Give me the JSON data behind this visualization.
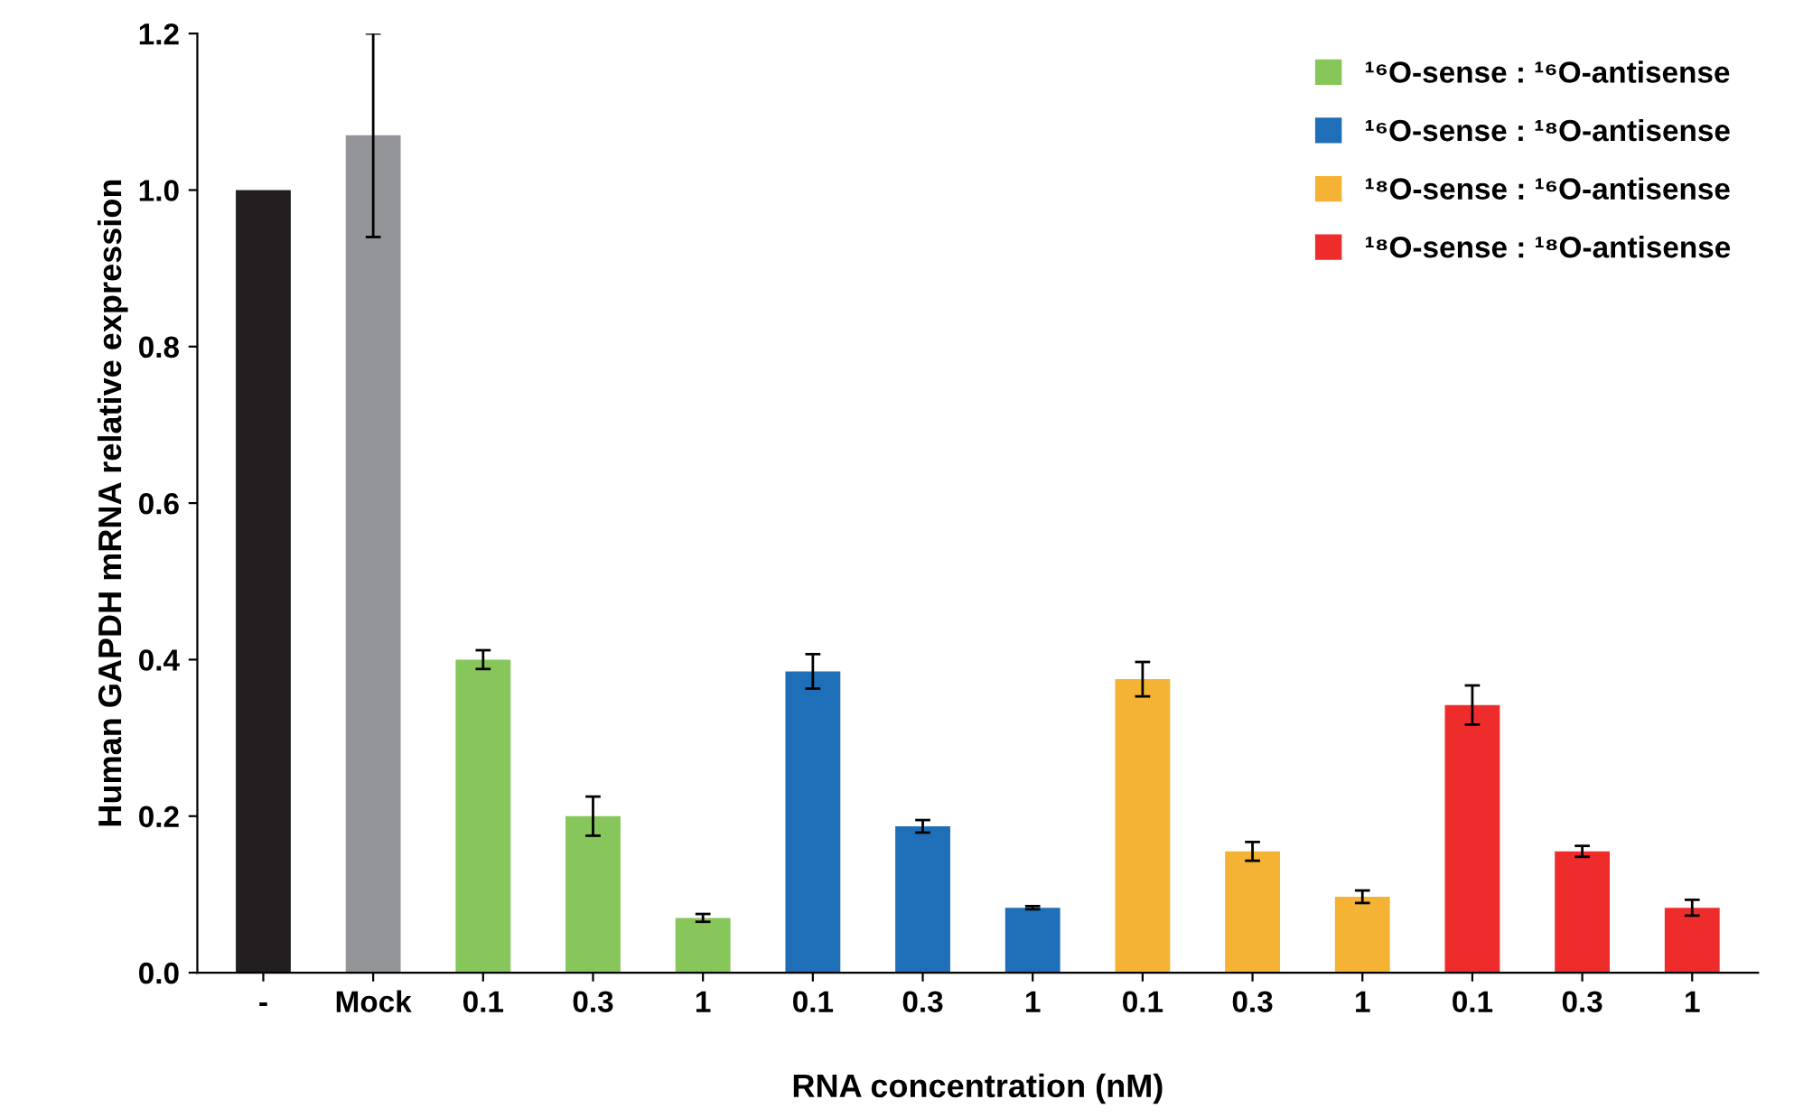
{
  "chart_data": {
    "type": "bar",
    "xlabel": "RNA concentration (nM)",
    "ylabel": "Human GAPDH mRNA relative expression",
    "categories": [
      "-",
      "Mock",
      "0.1",
      "0.3",
      "1",
      "0.1",
      "0.3",
      "1",
      "0.1",
      "0.3",
      "1",
      "0.1",
      "0.3",
      "1"
    ],
    "series": [
      {
        "colors": [
          "#231f20",
          "#939598",
          null,
          null,
          null,
          null,
          null,
          null,
          null,
          null,
          null,
          null,
          null,
          null
        ],
        "values": [
          1.0,
          1.07,
          null,
          null,
          null,
          null,
          null,
          null,
          null,
          null,
          null,
          null,
          null,
          null
        ],
        "errors": [
          null,
          0.13,
          null,
          null,
          null,
          null,
          null,
          null,
          null,
          null,
          null,
          null,
          null,
          null
        ]
      },
      {
        "name": "¹⁶O-sense : ¹⁶O-antisense",
        "color": "#86c65a",
        "values": [
          null,
          null,
          0.4,
          0.2,
          0.07,
          null,
          null,
          null,
          null,
          null,
          null,
          null,
          null,
          null
        ],
        "errors": [
          null,
          null,
          0.012,
          0.025,
          0.005,
          null,
          null,
          null,
          null,
          null,
          null,
          null,
          null,
          null
        ]
      },
      {
        "name": "¹⁶O-sense : ¹⁸O-antisense",
        "color": "#1f6fb8",
        "values": [
          null,
          null,
          null,
          null,
          null,
          0.385,
          0.187,
          0.083,
          null,
          null,
          null,
          null,
          null,
          null
        ],
        "errors": [
          null,
          null,
          null,
          null,
          null,
          0.022,
          0.008,
          0.002,
          null,
          null,
          null,
          null,
          null,
          null
        ]
      },
      {
        "name": "¹⁸O-sense : ¹⁶O-antisense",
        "color": "#f5b335",
        "values": [
          null,
          null,
          null,
          null,
          null,
          null,
          null,
          null,
          0.375,
          0.155,
          0.097,
          null,
          null,
          null
        ],
        "errors": [
          null,
          null,
          null,
          null,
          null,
          null,
          null,
          null,
          0.022,
          0.012,
          0.008,
          null,
          null,
          null
        ]
      },
      {
        "name": "¹⁸O-sense : ¹⁸O-antisense",
        "color": "#ee2c2c",
        "values": [
          null,
          null,
          null,
          null,
          null,
          null,
          null,
          null,
          null,
          null,
          null,
          0.342,
          0.155,
          0.083
        ],
        "errors": [
          null,
          null,
          null,
          null,
          null,
          null,
          null,
          null,
          null,
          null,
          null,
          0.025,
          0.007,
          0.01
        ]
      }
    ],
    "ylim": [
      0,
      1.2
    ],
    "yticks": [
      {
        "value": 0,
        "label": "0.0"
      },
      {
        "value": 0.2,
        "label": "0.2"
      },
      {
        "value": 0.4,
        "label": "0.4"
      },
      {
        "value": 0.6,
        "label": "0.6"
      },
      {
        "value": 0.8,
        "label": "0.8"
      },
      {
        "value": 1.0,
        "label": "1.0"
      },
      {
        "value": 1.2,
        "label": "1.2"
      }
    ],
    "grid": false,
    "legend": "top right"
  }
}
